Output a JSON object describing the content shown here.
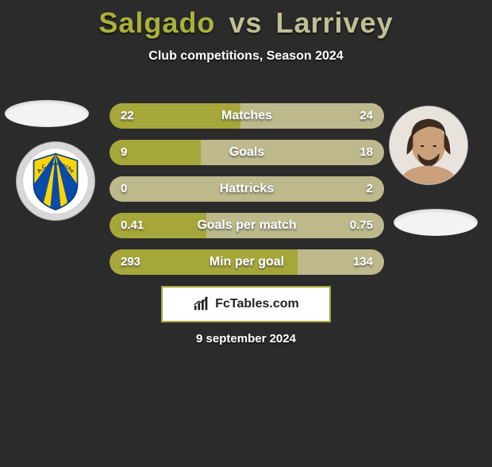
{
  "title": {
    "player1": "Salgado",
    "vs": "vs",
    "player2": "Larrivey",
    "player1_color": "#aab13a",
    "player2_color": "#c1be93"
  },
  "subtitle": "Club competitions, Season 2024",
  "colors": {
    "background": "#2b2b2b",
    "bar_left": "#a6a73a",
    "bar_right": "#bdb98c",
    "brand_border": "#a6a73a"
  },
  "club_badge": {
    "name": "A.C. Barneche",
    "stripe_colors": [
      "#0a4aa8",
      "#ffd400"
    ],
    "bg": "#ffffff"
  },
  "stats": [
    {
      "label": "Matches",
      "left_value": "22",
      "right_value": "24",
      "left_pct": 47.8,
      "right_pct": 52.2
    },
    {
      "label": "Goals",
      "left_value": "9",
      "right_value": "18",
      "left_pct": 33.3,
      "right_pct": 66.7
    },
    {
      "label": "Hattricks",
      "left_value": "0",
      "right_value": "2",
      "left_pct": 0.0,
      "right_pct": 100.0
    },
    {
      "label": "Goals per match",
      "left_value": "0.41",
      "right_value": "0.75",
      "left_pct": 35.3,
      "right_pct": 64.7
    },
    {
      "label": "Min per goal",
      "left_value": "293",
      "right_value": "134",
      "left_pct": 68.6,
      "right_pct": 31.4
    }
  ],
  "brand": "FcTables.com",
  "date": "9 september 2024"
}
